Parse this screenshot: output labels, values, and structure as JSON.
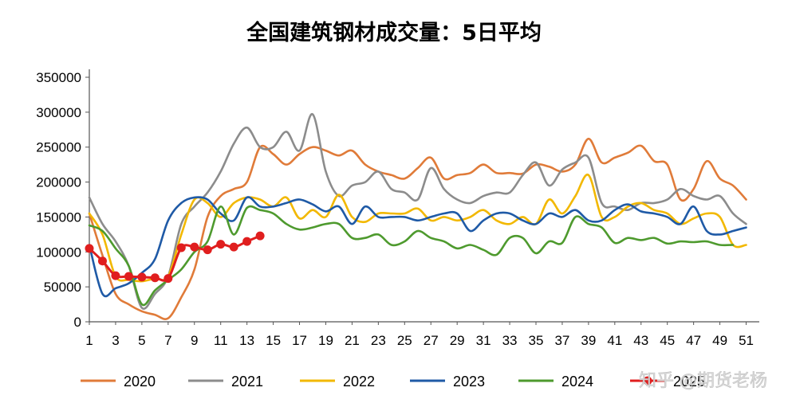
{
  "chart_data": {
    "type": "line",
    "title": "全国建筑钢材成交量：5日平均",
    "xlabel": "",
    "ylabel": "",
    "ylim": [
      0,
      350000
    ],
    "xlim": [
      1,
      52
    ],
    "y_ticks": [
      0,
      50000,
      100000,
      150000,
      200000,
      250000,
      300000,
      350000
    ],
    "y_tick_labels": [
      "0",
      "50000",
      "100000",
      "150000",
      "200000",
      "250000",
      "300000",
      "350000"
    ],
    "x_ticks": [
      1,
      3,
      5,
      7,
      9,
      11,
      13,
      15,
      17,
      19,
      21,
      23,
      25,
      27,
      29,
      31,
      33,
      35,
      37,
      39,
      41,
      43,
      45,
      47,
      49,
      51
    ],
    "x_tick_labels": [
      "1",
      "3",
      "5",
      "7",
      "9",
      "11",
      "13",
      "15",
      "17",
      "19",
      "21",
      "23",
      "25",
      "27",
      "29",
      "31",
      "33",
      "35",
      "37",
      "39",
      "41",
      "43",
      "45",
      "47",
      "49",
      "51"
    ],
    "grid": false,
    "legend_position": "bottom",
    "series": [
      {
        "name": "2020",
        "color": "#E07B39",
        "marker": false,
        "values": [
          155000,
          95000,
          40000,
          25000,
          15000,
          10000,
          5000,
          35000,
          75000,
          150000,
          180000,
          190000,
          200000,
          250000,
          240000,
          225000,
          240000,
          250000,
          245000,
          238000,
          245000,
          225000,
          215000,
          210000,
          205000,
          220000,
          235000,
          205000,
          210000,
          213000,
          225000,
          213000,
          213000,
          212000,
          225000,
          222000,
          215000,
          225000,
          262000,
          228000,
          235000,
          242000,
          252000,
          230000,
          225000,
          175000,
          190000,
          230000,
          205000,
          195000,
          175000
        ]
      },
      {
        "name": "2021",
        "color": "#8C8C8C",
        "marker": false,
        "values": [
          178000,
          140000,
          115000,
          80000,
          20000,
          40000,
          65000,
          140000,
          165000,
          185000,
          215000,
          255000,
          278000,
          250000,
          250000,
          272000,
          245000,
          297000,
          215000,
          180000,
          195000,
          200000,
          215000,
          190000,
          185000,
          175000,
          220000,
          190000,
          175000,
          170000,
          180000,
          185000,
          185000,
          210000,
          228000,
          195000,
          218000,
          228000,
          235000,
          170000,
          165000,
          160000,
          170000,
          170000,
          175000,
          190000,
          180000,
          175000,
          180000,
          155000,
          140000
        ]
      },
      {
        "name": "2022",
        "color": "#F2B800",
        "marker": false,
        "values": [
          155000,
          125000,
          65000,
          60000,
          58000,
          62000,
          65000,
          125000,
          175000,
          170000,
          150000,
          170000,
          178000,
          175000,
          165000,
          178000,
          148000,
          160000,
          150000,
          182000,
          150000,
          143000,
          155000,
          155000,
          155000,
          162000,
          145000,
          150000,
          145000,
          150000,
          160000,
          145000,
          140000,
          150000,
          140000,
          175000,
          155000,
          180000,
          210000,
          150000,
          150000,
          165000,
          170000,
          160000,
          155000,
          140000,
          148000,
          155000,
          150000,
          110000,
          110000
        ]
      },
      {
        "name": "2023",
        "color": "#1F5AA6",
        "marker": false,
        "values": [
          110000,
          40000,
          48000,
          55000,
          70000,
          90000,
          145000,
          170000,
          178000,
          175000,
          155000,
          145000,
          178000,
          165000,
          165000,
          170000,
          175000,
          168000,
          158000,
          165000,
          140000,
          165000,
          150000,
          150000,
          150000,
          145000,
          150000,
          155000,
          155000,
          130000,
          145000,
          155000,
          155000,
          145000,
          140000,
          155000,
          150000,
          160000,
          145000,
          145000,
          160000,
          168000,
          158000,
          155000,
          150000,
          140000,
          165000,
          130000,
          125000,
          130000,
          135000
        ]
      },
      {
        "name": "2024",
        "color": "#4E9A2E",
        "marker": false,
        "values": [
          138000,
          130000,
          105000,
          80000,
          25000,
          45000,
          60000,
          75000,
          100000,
          115000,
          165000,
          125000,
          163000,
          160000,
          155000,
          140000,
          132000,
          135000,
          140000,
          140000,
          120000,
          120000,
          125000,
          110000,
          115000,
          130000,
          120000,
          115000,
          105000,
          110000,
          103000,
          96000,
          120000,
          120000,
          98000,
          115000,
          113000,
          150000,
          140000,
          135000,
          113000,
          120000,
          117000,
          120000,
          112000,
          115000,
          114000,
          115000,
          110000,
          110000
        ]
      },
      {
        "name": "2025",
        "color": "#E01E1E",
        "marker": true,
        "values": [
          105000,
          87000,
          66000,
          65000,
          64000,
          63000,
          62000,
          106000,
          107000,
          103000,
          111000,
          107000,
          115000,
          123000
        ]
      }
    ]
  },
  "watermark": {
    "text": "知乎 @期货老杨"
  }
}
